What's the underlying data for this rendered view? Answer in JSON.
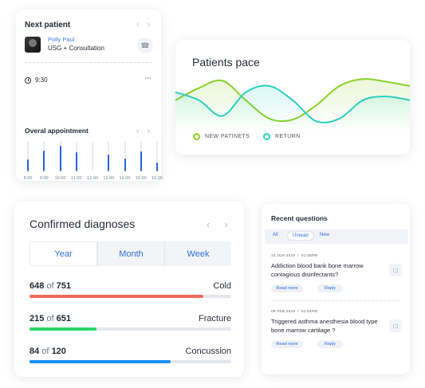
{
  "next_patient": {
    "title": "Next patient",
    "patient_name": "Polly Paul",
    "service": "USG + Consultation",
    "time": "9:30",
    "appointment_title": "Overal appointment",
    "chart_data": {
      "type": "bar",
      "categories": [
        "8:00",
        "9:00",
        "10:00",
        "11:00",
        "12:00",
        "13:00",
        "14:00",
        "15:00",
        "16:00"
      ],
      "values": [
        0.4,
        0.68,
        0.85,
        0.62,
        0.0,
        0.55,
        0.42,
        0.66,
        0.3
      ],
      "ylim": [
        0,
        1
      ],
      "color": "#2a62d9"
    }
  },
  "patients_pace": {
    "title": "Patients pace",
    "legend": {
      "new": "NEW PATINETS",
      "return": "RETURN"
    },
    "chart_data": {
      "type": "area",
      "x": [
        0,
        1,
        2,
        3,
        4,
        5,
        6,
        7,
        8,
        9,
        10
      ],
      "series": [
        {
          "name": "NEW PATINETS",
          "color": "#8ad12a",
          "values": [
            0.55,
            0.78,
            0.92,
            0.55,
            0.2,
            0.18,
            0.45,
            0.82,
            0.95,
            0.9,
            0.82
          ]
        },
        {
          "name": "RETURN",
          "color": "#2bd0c0",
          "values": [
            0.7,
            0.55,
            0.25,
            0.7,
            0.82,
            0.55,
            0.15,
            0.2,
            0.55,
            0.62,
            0.55
          ]
        }
      ],
      "ylim": [
        0,
        1
      ],
      "grid": false
    }
  },
  "diagnoses": {
    "title": "Confirmed diagnoses",
    "tabs": [
      "Year",
      "Month",
      "Week"
    ],
    "active_tab": "Year",
    "of_word": "of",
    "items": [
      {
        "count": "648",
        "total": "751",
        "name": "Cold",
        "value": 648,
        "max": 751,
        "color": "#ee6a5c"
      },
      {
        "count": "215",
        "total": "651",
        "name": "Fracture",
        "value": 215,
        "max": 651,
        "color": "#2ed36b"
      },
      {
        "count": "84",
        "total": "120",
        "name": "Concussion",
        "value": 84,
        "max": 120,
        "color": "#1a8ff0"
      }
    ]
  },
  "questions": {
    "title": "Recent questions",
    "filters": [
      "All",
      "Unread",
      "New"
    ],
    "active_filter": "Unread",
    "items": [
      {
        "date": "14 JUN 2019",
        "time": "01:05PM",
        "text": "Addiction blood bank bone marrow contagious disinfectants?",
        "read_more": "Read more",
        "reply": "Reply"
      },
      {
        "date": "06 FEB 2019",
        "time": "01:54PM",
        "text": "Triggered asthma anesthesia blood type bone marrow cartilage ?",
        "read_more": "Read more",
        "reply": "Reply"
      }
    ]
  }
}
